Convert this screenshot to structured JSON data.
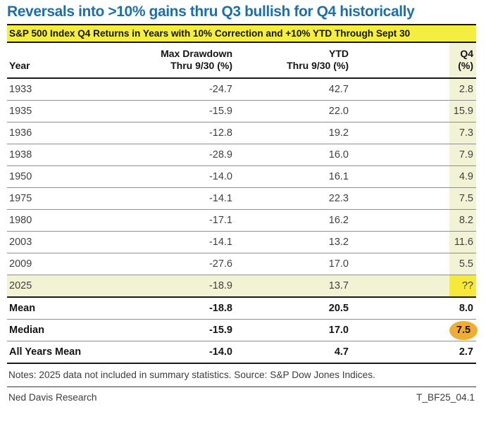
{
  "title": "Reversals into >10% gains thru Q3 bullish for Q4 historically",
  "banner": "S&P 500 Index Q4 Returns in Years with 10% Correction and +10% YTD Through Sept 30",
  "table": {
    "columns": [
      {
        "line1": "",
        "line2": "Year"
      },
      {
        "line1": "Max Drawdown",
        "line2": "Thru 9/30 (%)"
      },
      {
        "line1": "YTD",
        "line2": "Thru 9/30 (%)"
      },
      {
        "line1": "Q4",
        "line2": "(%)"
      }
    ],
    "rows": [
      {
        "year": "1933",
        "drawdown": "-24.7",
        "ytd": "42.7",
        "q4": "2.8"
      },
      {
        "year": "1935",
        "drawdown": "-15.9",
        "ytd": "22.0",
        "q4": "15.9"
      },
      {
        "year": "1936",
        "drawdown": "-12.8",
        "ytd": "19.2",
        "q4": "7.3"
      },
      {
        "year": "1938",
        "drawdown": "-28.9",
        "ytd": "16.0",
        "q4": "7.9"
      },
      {
        "year": "1950",
        "drawdown": "-14.0",
        "ytd": "16.1",
        "q4": "4.9"
      },
      {
        "year": "1975",
        "drawdown": "-14.1",
        "ytd": "22.3",
        "q4": "7.5"
      },
      {
        "year": "1980",
        "drawdown": "-17.1",
        "ytd": "16.2",
        "q4": "8.2"
      },
      {
        "year": "2003",
        "drawdown": "-14.1",
        "ytd": "13.2",
        "q4": "11.6"
      },
      {
        "year": "2009",
        "drawdown": "-27.6",
        "ytd": "17.0",
        "q4": "5.5"
      },
      {
        "year": "2025",
        "drawdown": "-18.9",
        "ytd": "13.7",
        "q4": "??",
        "highlight": true
      }
    ],
    "summary": [
      {
        "label": "Mean",
        "drawdown": "-18.8",
        "ytd": "20.5",
        "q4": "8.0"
      },
      {
        "label": "Median",
        "drawdown": "-15.9",
        "ytd": "17.0",
        "q4": "7.5",
        "circled": true
      },
      {
        "label": "All Years Mean",
        "drawdown": "-14.0",
        "ytd": "4.7",
        "q4": "2.7"
      }
    ]
  },
  "notes": "Notes: 2025 data not included in summary statistics. Source: S&P Dow Jones Indices.",
  "footer": {
    "left": "Ned Davis Research",
    "right": "T_BF25_04.1"
  },
  "colors": {
    "title_blue": "#1e6fa7",
    "banner_yellow": "#f4ee41",
    "q4_band_pale_yellow": "#f2f3d5",
    "row_2025_highlight": "#f2f3d5",
    "unknown_cell_bright_yellow": "#f6e93c",
    "median_circle_gold": "#f0ad33"
  },
  "chart_data": {
    "type": "table",
    "title": "S&P 500 Index Q4 Returns in Years with 10% Correction and +10% YTD Through Sept 30",
    "columns": [
      "Year",
      "Max Drawdown Thru 9/30 (%)",
      "YTD Thru 9/30 (%)",
      "Q4 (%)"
    ],
    "rows": [
      [
        "1933",
        -24.7,
        42.7,
        2.8
      ],
      [
        "1935",
        -15.9,
        22.0,
        15.9
      ],
      [
        "1936",
        -12.8,
        19.2,
        7.3
      ],
      [
        "1938",
        -28.9,
        16.0,
        7.9
      ],
      [
        "1950",
        -14.0,
        16.1,
        4.9
      ],
      [
        "1975",
        -14.1,
        22.3,
        7.5
      ],
      [
        "1980",
        -17.1,
        16.2,
        8.2
      ],
      [
        "2003",
        -14.1,
        13.2,
        11.6
      ],
      [
        "2009",
        -27.6,
        17.0,
        5.5
      ],
      [
        "2025",
        -18.9,
        13.7,
        null
      ]
    ],
    "summary_rows": [
      [
        "Mean",
        -18.8,
        20.5,
        8.0
      ],
      [
        "Median",
        -15.9,
        17.0,
        7.5
      ],
      [
        "All Years Mean",
        -14.0,
        4.7,
        2.7
      ]
    ],
    "annotations": [
      "2025 Q4 value unknown, shown as ??",
      "Median Q4 value 7.5 circled in gold"
    ]
  }
}
